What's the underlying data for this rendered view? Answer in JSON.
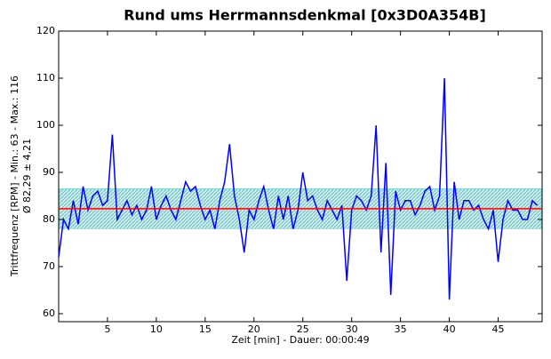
{
  "chart_data": {
    "type": "line",
    "title": "Rund ums Herrmannsdenkmal [0x3D0A354B]",
    "x_label": "Zeit [min] - Dauer: 00:00:49",
    "y_label": "Trittfrequenz [RPM] - Min.: 63 - Max.: 116",
    "y_label2": "Ø 82,29 ± 4,21",
    "mean": 82.29,
    "std": 4.21,
    "mean_color": "#ff0000",
    "band_color": "#7fd8d8",
    "x": [
      0,
      0.5,
      1,
      1.5,
      2,
      2.5,
      3,
      3.5,
      4,
      4.5,
      5,
      5.5,
      6,
      6.5,
      7,
      7.5,
      8,
      8.5,
      9,
      9.5,
      10,
      10.5,
      11,
      11.5,
      12,
      12.5,
      13,
      13.5,
      14,
      14.5,
      15,
      15.5,
      16,
      16.5,
      17,
      17.5,
      18,
      18.5,
      19,
      19.5,
      20,
      20.5,
      21,
      21.5,
      22,
      22.5,
      23,
      23.5,
      24,
      24.5,
      25,
      25.5,
      26,
      26.5,
      27,
      27.5,
      28,
      28.5,
      29,
      29.5,
      30,
      30.5,
      31,
      31.5,
      32,
      32.5,
      33,
      33.5,
      34,
      34.5,
      35,
      35.5,
      36,
      36.5,
      37,
      37.5,
      38,
      38.5,
      39,
      39.5,
      40,
      40.5,
      41,
      41.5,
      42,
      42.5,
      43,
      43.5,
      44,
      44.5,
      45,
      45.5,
      46,
      46.5,
      47,
      47.5,
      48,
      48.5,
      49
    ],
    "series": [
      {
        "name": "Trittfrequenz",
        "color": "#0000ff",
        "values": [
          72,
          80,
          78,
          84,
          79,
          87,
          82,
          85,
          86,
          83,
          84,
          98,
          80,
          82,
          84,
          81,
          83,
          80,
          82,
          87,
          80,
          83,
          85,
          82,
          80,
          84,
          88,
          86,
          87,
          83,
          80,
          82,
          78,
          84,
          88,
          96,
          85,
          80,
          73,
          82,
          80,
          84,
          87,
          82,
          78,
          85,
          80,
          85,
          78,
          82,
          90,
          84,
          85,
          82,
          80,
          84,
          82,
          80,
          83,
          67,
          82,
          85,
          84,
          82,
          85,
          100,
          73,
          92,
          64,
          86,
          82,
          84,
          84,
          81,
          83,
          86,
          87,
          82,
          85,
          110,
          63,
          88,
          80,
          84,
          84,
          82,
          83,
          80,
          78,
          82,
          71,
          80,
          84,
          82,
          82,
          80,
          80,
          84,
          83
        ]
      }
    ],
    "xlim": [
      0,
      49.5
    ],
    "ylim": [
      58.3,
      120
    ],
    "xticks": [
      5,
      10,
      15,
      20,
      25,
      30,
      35,
      40,
      45
    ],
    "yticks": [
      60,
      70,
      80,
      90,
      100,
      110,
      120
    ]
  }
}
